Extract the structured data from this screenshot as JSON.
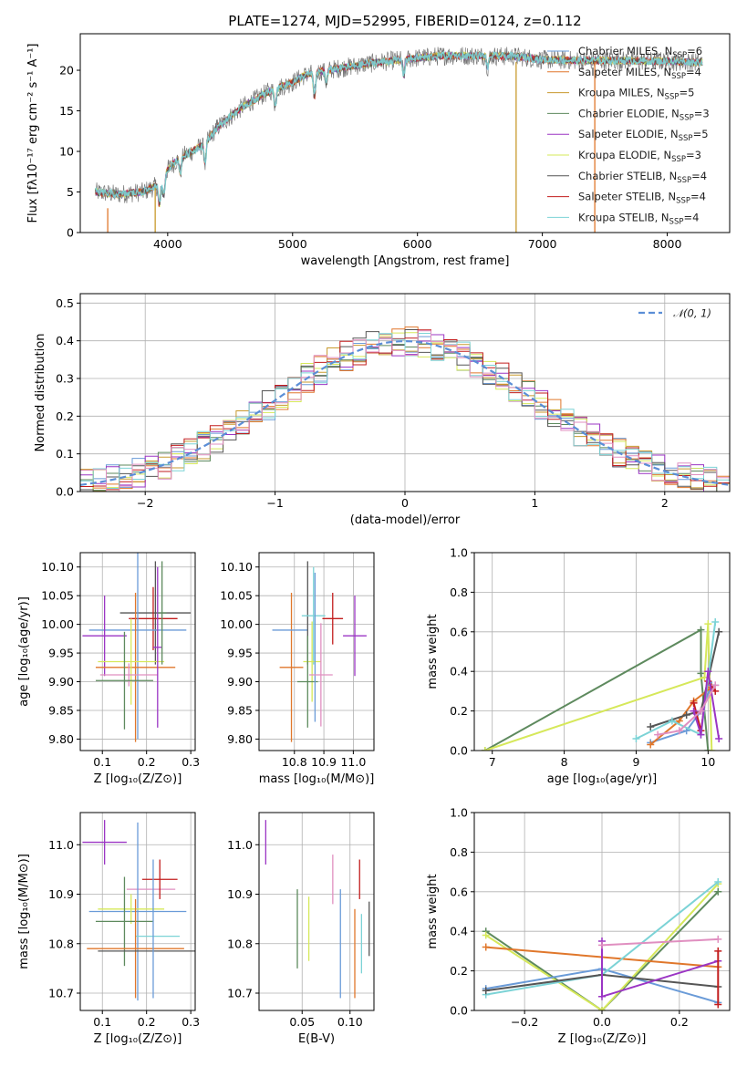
{
  "colors": {
    "chabrier_miles": "#6a9bd8",
    "salpeter_miles": "#e0772b",
    "kroupa_miles": "#c89a2e",
    "chabrier_elodie": "#5e8a5e",
    "salpeter_elodie": "#9b35c4",
    "kroupa_elodie": "#d6e85a",
    "chabrier_stelib": "#555555",
    "salpeter_stelib": "#c21d1d",
    "kroupa_stelib": "#7cd3d6",
    "pink": "#e08fc0",
    "gaussian": "#5b8ed6",
    "grid": "#b0b0b0"
  },
  "chart_data": [
    {
      "id": "spectrum",
      "type": "line",
      "title": "PLATE=1274, MJD=52995, FIBERID=0124, z=0.112",
      "xlabel": "wavelength [Angstrom, rest frame]",
      "ylabel": "Flux [fλ10⁻¹⁷ erg cm⁻² s⁻¹ A⁻¹]",
      "xlim": [
        3300,
        8500
      ],
      "ylim": [
        0,
        24.5
      ],
      "xticks": [
        4000,
        5000,
        6000,
        7000,
        8000
      ],
      "yticks": [
        0,
        5,
        10,
        15,
        20
      ],
      "grid": false,
      "legend_position": "top-right",
      "continuum": [
        [
          3420,
          5.0
        ],
        [
          3600,
          4.7
        ],
        [
          3800,
          5.0
        ],
        [
          3950,
          6.0
        ],
        [
          4000,
          7.8
        ],
        [
          4100,
          9.3
        ],
        [
          4200,
          10.0
        ],
        [
          4300,
          11.0
        ],
        [
          4400,
          13.0
        ],
        [
          4600,
          15.5
        ],
        [
          4800,
          17.3
        ],
        [
          5000,
          18.5
        ],
        [
          5100,
          19.4
        ],
        [
          5200,
          19.8
        ],
        [
          5400,
          20.3
        ],
        [
          5600,
          20.8
        ],
        [
          5800,
          21.2
        ],
        [
          6000,
          21.5
        ],
        [
          6200,
          21.8
        ],
        [
          6500,
          21.8
        ],
        [
          6800,
          21.7
        ],
        [
          7000,
          21.3
        ],
        [
          7300,
          21.2
        ],
        [
          7600,
          21.2
        ],
        [
          8000,
          21.1
        ],
        [
          8280,
          21.0
        ]
      ],
      "series": [
        {
          "name": "Chabrier MILES, N_SSP=6",
          "label": "Chabrier MILES, N",
          "sub": "SSP",
          "suffix": "=6",
          "color_key": "chabrier_miles"
        },
        {
          "name": "Salpeter MILES, N_SSP=4",
          "label": "Salpeter MILES, N",
          "sub": "SSP",
          "suffix": "=4",
          "color_key": "salpeter_miles"
        },
        {
          "name": "Kroupa MILES, N_SSP=5",
          "label": "Kroupa MILES, N",
          "sub": "SSP",
          "suffix": "=5",
          "color_key": "kroupa_miles"
        },
        {
          "name": "Chabrier ELODIE, N_SSP=3",
          "label": "Chabrier ELODIE, N",
          "sub": "SSP",
          "suffix": "=3",
          "color_key": "chabrier_elodie"
        },
        {
          "name": "Salpeter ELODIE, N_SSP=5",
          "label": "Salpeter ELODIE, N",
          "sub": "SSP",
          "suffix": "=5",
          "color_key": "salpeter_elodie"
        },
        {
          "name": "Kroupa ELODIE, N_SSP=3",
          "label": "Kroupa ELODIE, N",
          "sub": "SSP",
          "suffix": "=3",
          "color_key": "kroupa_elodie"
        },
        {
          "name": "Chabrier STELIB, N_SSP=4",
          "label": "Chabrier STELIB, N",
          "sub": "SSP",
          "suffix": "=4",
          "color_key": "chabrier_stelib"
        },
        {
          "name": "Salpeter STELIB, N_SSP=4",
          "label": "Salpeter STELIB, N",
          "sub": "SSP",
          "suffix": "=4",
          "color_key": "salpeter_stelib"
        },
        {
          "name": "Kroupa STELIB, N_SSP=4",
          "label": "Kroupa STELIB, N",
          "sub": "SSP",
          "suffix": "=4",
          "color_key": "kroupa_stelib"
        }
      ],
      "drops": [
        {
          "x": 3520,
          "color_key": "salpeter_miles",
          "from": 3.0
        },
        {
          "x": 3900,
          "color_key": "kroupa_miles",
          "from": 5.5
        },
        {
          "x": 6790,
          "color_key": "kroupa_miles",
          "from": 21.0
        },
        {
          "x": 7420,
          "color_key": "salpeter_miles",
          "from": 21.0
        }
      ]
    },
    {
      "id": "residuals",
      "type": "bar",
      "xlabel": "(data-model)/error",
      "ylabel": "Normed distribution",
      "xlim": [
        -2.5,
        2.5
      ],
      "ylim": [
        0,
        0.525
      ],
      "xticks": [
        -2,
        -1,
        0,
        1,
        2
      ],
      "xtick_labels": [
        "−2",
        "−1",
        "0",
        "1",
        "2"
      ],
      "yticks": [
        0,
        0.1,
        0.2,
        0.3,
        0.4,
        0.5
      ],
      "ytick_labels": [
        "0.0",
        "0.1",
        "0.2",
        "0.3",
        "0.4",
        "0.5"
      ],
      "grid": true,
      "bin_width": 0.1,
      "legend": "𝒩(0, 1)",
      "legend_position": "top-right",
      "histogram_color_keys": [
        "chabrier_miles",
        "salpeter_miles",
        "kroupa_miles",
        "chabrier_elodie",
        "salpeter_elodie",
        "kroupa_elodie",
        "chabrier_stelib",
        "salpeter_stelib",
        "kroupa_stelib",
        "pink"
      ]
    },
    {
      "id": "age_vs_Z",
      "type": "scatter",
      "xlabel": "Z [log₁₀(Z/Z⊙)]",
      "ylabel": "age  [log₁₀(age/yr)]",
      "xlim": [
        0.05,
        0.31
      ],
      "ylim": [
        9.78,
        10.125
      ],
      "xticks": [
        0.1,
        0.2,
        0.3
      ],
      "yticks": [
        9.8,
        9.85,
        9.9,
        9.95,
        10.0,
        10.05,
        10.1
      ],
      "ytick_labels": [
        "9.80",
        "9.85",
        "9.90",
        "9.95",
        "10.00",
        "10.05",
        "10.10"
      ],
      "grid": true,
      "points": [
        {
          "x": 0.22,
          "y": 10.02,
          "xerr": 0.08,
          "yerr": 0.09,
          "color_key": "chabrier_stelib"
        },
        {
          "x": 0.215,
          "y": 10.01,
          "xerr": 0.055,
          "yerr": 0.055,
          "color_key": "salpeter_stelib"
        },
        {
          "x": 0.18,
          "y": 9.99,
          "xerr": 0.11,
          "yerr": 0.19,
          "color_key": "chabrier_miles"
        },
        {
          "x": 0.105,
          "y": 9.98,
          "xerr": 0.05,
          "yerr": 0.07,
          "color_key": "salpeter_elodie"
        },
        {
          "x": 0.175,
          "y": 9.925,
          "xerr": 0.09,
          "yerr": 0.13,
          "color_key": "salpeter_miles"
        },
        {
          "x": 0.165,
          "y": 9.935,
          "xerr": 0.075,
          "yerr": 0.075,
          "color_key": "kroupa_elodie"
        },
        {
          "x": 0.16,
          "y": 9.912,
          "xerr": 0.065,
          "yerr": 0.02,
          "color_key": "pink"
        },
        {
          "x": 0.15,
          "y": 9.902,
          "xerr": 0.065,
          "yerr": 0.085,
          "color_key": "chabrier_elodie"
        },
        {
          "x": 0.225,
          "y": 9.96,
          "xerr": 0.01,
          "yerr": 0.14,
          "color_key": "salpeter_elodie"
        },
        {
          "x": 0.235,
          "y": 10.02,
          "xerr": 0.01,
          "yerr": 0.09,
          "color_key": "chabrier_elodie"
        }
      ]
    },
    {
      "id": "age_vs_mass",
      "type": "scatter",
      "xlabel": "mass [log₁₀(M/M⊙)]",
      "xlim": [
        10.68,
        11.07
      ],
      "ylim": [
        9.78,
        10.125
      ],
      "xticks": [
        10.8,
        10.9,
        11.0
      ],
      "xtick_labels": [
        "10.8",
        "10.9",
        "11.0"
      ],
      "yticks": [
        9.8,
        9.85,
        9.9,
        9.95,
        10.0,
        10.05,
        10.1
      ],
      "ytick_labels": [
        "9.80",
        "9.85",
        "9.90",
        "9.95",
        "10.00",
        "10.05",
        "10.10"
      ],
      "grid": true,
      "points": [
        {
          "x": 10.79,
          "y": 9.925,
          "xerr": 0.04,
          "yerr": 0.13,
          "color_key": "salpeter_miles"
        },
        {
          "x": 10.785,
          "y": 9.99,
          "xerr": 0.06,
          "yerr": 0.0,
          "color_key": "chabrier_miles"
        },
        {
          "x": 10.845,
          "y": 10.02,
          "xerr": 0.0,
          "yerr": 0.09,
          "color_key": "chabrier_stelib"
        },
        {
          "x": 10.865,
          "y": 10.015,
          "xerr": 0.04,
          "yerr": 0.085,
          "color_key": "kroupa_stelib"
        },
        {
          "x": 10.86,
          "y": 9.935,
          "xerr": 0.03,
          "yerr": 0.07,
          "color_key": "kroupa_elodie"
        },
        {
          "x": 10.845,
          "y": 9.9,
          "xerr": 0.035,
          "yerr": 0.08,
          "color_key": "chabrier_elodie"
        },
        {
          "x": 10.87,
          "y": 9.96,
          "xerr": 0.0,
          "yerr": 0.13,
          "color_key": "chabrier_miles"
        },
        {
          "x": 10.89,
          "y": 9.912,
          "xerr": 0.04,
          "yerr": 0.09,
          "color_key": "pink"
        },
        {
          "x": 10.93,
          "y": 10.01,
          "xerr": 0.035,
          "yerr": 0.045,
          "color_key": "salpeter_stelib"
        },
        {
          "x": 11.005,
          "y": 9.98,
          "xerr": 0.04,
          "yerr": 0.07,
          "color_key": "salpeter_elodie"
        }
      ]
    },
    {
      "id": "mass_weight_vs_age",
      "type": "line",
      "xlabel": "age  [log₁₀(age/yr)]",
      "ylabel": "mass weight",
      "xlim": [
        6.75,
        10.3
      ],
      "ylim": [
        0,
        1.0
      ],
      "xticks": [
        7,
        8,
        9,
        10
      ],
      "yticks": [
        0,
        0.2,
        0.4,
        0.6,
        0.8,
        1.0
      ],
      "ytick_labels": [
        "0.0",
        "0.2",
        "0.4",
        "0.6",
        "0.8",
        "1.0"
      ],
      "grid": true,
      "series": [
        {
          "color_key": "chabrier_elodie",
          "x": [
            6.9,
            9.9,
            9.9,
            10.0
          ],
          "y": [
            0.0,
            0.61,
            0.39,
            0.0
          ]
        },
        {
          "color_key": "kroupa_elodie",
          "x": [
            6.9,
            9.95,
            10.0,
            10.05
          ],
          "y": [
            0.0,
            0.37,
            0.64,
            0.0
          ]
        },
        {
          "color_key": "chabrier_miles",
          "x": [
            9.2,
            9.7,
            9.9,
            10.05,
            10.1
          ],
          "y": [
            0.04,
            0.1,
            0.2,
            0.33,
            0.33
          ]
        },
        {
          "color_key": "salpeter_miles",
          "x": [
            9.2,
            9.6,
            9.8,
            10.05
          ],
          "y": [
            0.03,
            0.15,
            0.25,
            0.32
          ]
        },
        {
          "color_key": "chabrier_stelib",
          "x": [
            9.2,
            9.7,
            9.9,
            10.15
          ],
          "y": [
            0.12,
            0.18,
            0.2,
            0.6
          ]
        },
        {
          "color_key": "salpeter_stelib",
          "x": [
            9.8,
            9.9,
            10.0,
            10.1
          ],
          "y": [
            0.24,
            0.1,
            0.35,
            0.3
          ]
        },
        {
          "color_key": "kroupa_stelib",
          "x": [
            9.0,
            9.5,
            9.9,
            10.1
          ],
          "y": [
            0.06,
            0.15,
            0.08,
            0.65
          ]
        },
        {
          "color_key": "salpeter_elodie",
          "x": [
            9.8,
            9.9,
            10.0,
            10.15
          ],
          "y": [
            0.2,
            0.08,
            0.4,
            0.06
          ]
        },
        {
          "color_key": "pink",
          "x": [
            9.3,
            9.6,
            9.9,
            10.1
          ],
          "y": [
            0.08,
            0.1,
            0.2,
            0.33
          ]
        }
      ]
    },
    {
      "id": "mass_vs_Z",
      "type": "scatter",
      "xlabel": "Z [log₁₀(Z/Z⊙)]",
      "ylabel": "mass [log₁₀(M/M⊙)]",
      "xlim": [
        0.05,
        0.31
      ],
      "ylim": [
        10.665,
        11.065
      ],
      "xticks": [
        0.1,
        0.2,
        0.3
      ],
      "yticks": [
        10.7,
        10.8,
        10.9,
        11.0
      ],
      "ytick_labels": [
        "10.7",
        "10.8",
        "10.9",
        "11.0"
      ],
      "grid": true,
      "points": [
        {
          "x": 0.105,
          "y": 11.005,
          "xerr": 0.05,
          "yerr": 0.045,
          "color_key": "salpeter_elodie"
        },
        {
          "x": 0.21,
          "y": 10.91,
          "xerr": 0.055,
          "yerr": 0.0,
          "color_key": "pink"
        },
        {
          "x": 0.23,
          "y": 10.93,
          "xerr": 0.04,
          "yerr": 0.04,
          "color_key": "salpeter_stelib"
        },
        {
          "x": 0.18,
          "y": 10.865,
          "xerr": 0.11,
          "yerr": 0.18,
          "color_key": "chabrier_miles"
        },
        {
          "x": 0.165,
          "y": 10.87,
          "xerr": 0.075,
          "yerr": 0.03,
          "color_key": "kroupa_elodie"
        },
        {
          "x": 0.15,
          "y": 10.845,
          "xerr": 0.065,
          "yerr": 0.09,
          "color_key": "chabrier_elodie"
        },
        {
          "x": 0.225,
          "y": 10.815,
          "xerr": 0.05,
          "yerr": 0.0,
          "color_key": "kroupa_stelib"
        },
        {
          "x": 0.175,
          "y": 10.79,
          "xerr": 0.11,
          "yerr": 0.1,
          "color_key": "salpeter_miles"
        },
        {
          "x": 0.2,
          "y": 10.785,
          "xerr": 0.11,
          "yerr": 0.0,
          "color_key": "chabrier_stelib"
        },
        {
          "x": 0.215,
          "y": 10.83,
          "xerr": 0.0,
          "yerr": 0.14,
          "color_key": "chabrier_miles"
        }
      ]
    },
    {
      "id": "mass_vs_ebv",
      "type": "scatter",
      "xlabel": "E(B-V)",
      "xlim": [
        0.005,
        0.125
      ],
      "ylim": [
        10.665,
        11.065
      ],
      "xticks": [
        0.05,
        0.1
      ],
      "xtick_labels": [
        "0.05",
        "0.10"
      ],
      "yticks": [
        10.7,
        10.8,
        10.9,
        11.0
      ],
      "ytick_labels": [
        "10.7",
        "10.8",
        "10.9",
        "11.0"
      ],
      "grid": true,
      "points": [
        {
          "x": 0.012,
          "y": 11.005,
          "xerr": 0.0,
          "yerr": 0.045,
          "color_key": "salpeter_elodie"
        },
        {
          "x": 0.045,
          "y": 10.83,
          "xerr": 0.0,
          "yerr": 0.08,
          "color_key": "chabrier_elodie"
        },
        {
          "x": 0.057,
          "y": 10.83,
          "xerr": 0.0,
          "yerr": 0.065,
          "color_key": "kroupa_elodie"
        },
        {
          "x": 0.082,
          "y": 10.93,
          "xerr": 0.0,
          "yerr": 0.05,
          "color_key": "pink"
        },
        {
          "x": 0.09,
          "y": 10.8,
          "xerr": 0.0,
          "yerr": 0.11,
          "color_key": "chabrier_miles"
        },
        {
          "x": 0.105,
          "y": 10.78,
          "xerr": 0.0,
          "yerr": 0.09,
          "color_key": "salpeter_miles"
        },
        {
          "x": 0.11,
          "y": 10.93,
          "xerr": 0.0,
          "yerr": 0.04,
          "color_key": "salpeter_stelib"
        },
        {
          "x": 0.112,
          "y": 10.8,
          "xerr": 0.0,
          "yerr": 0.06,
          "color_key": "kroupa_stelib"
        },
        {
          "x": 0.12,
          "y": 10.83,
          "xerr": 0.0,
          "yerr": 0.055,
          "color_key": "chabrier_stelib"
        }
      ]
    },
    {
      "id": "mass_weight_vs_Z",
      "type": "line",
      "xlabel": "Z [log₁₀(Z/Z⊙)]",
      "ylabel": "mass weight",
      "xlim": [
        -0.33,
        0.33
      ],
      "ylim": [
        0,
        1.0
      ],
      "xticks": [
        -0.2,
        0.0,
        0.2
      ],
      "xtick_labels": [
        "−0.2",
        "0.0",
        "0.2"
      ],
      "yticks": [
        0,
        0.2,
        0.4,
        0.6,
        0.8,
        1.0
      ],
      "ytick_labels": [
        "0.0",
        "0.2",
        "0.4",
        "0.6",
        "0.8",
        "1.0"
      ],
      "grid": true,
      "series": [
        {
          "color_key": "chabrier_elodie",
          "x": [
            -0.3,
            0.0,
            0.3
          ],
          "y": [
            0.4,
            0.0,
            0.6
          ]
        },
        {
          "color_key": "kroupa_elodie",
          "x": [
            -0.3,
            0.0,
            0.3
          ],
          "y": [
            0.38,
            0.0,
            0.64
          ]
        },
        {
          "color_key": "salpeter_miles",
          "x": [
            -0.3,
            0.3
          ],
          "y": [
            0.32,
            0.22
          ]
        },
        {
          "color_key": "chabrier_miles",
          "x": [
            -0.3,
            0.0,
            0.3
          ],
          "y": [
            0.11,
            0.21,
            0.04
          ]
        },
        {
          "color_key": "kroupa_stelib",
          "x": [
            -0.3,
            0.0,
            0.3
          ],
          "y": [
            0.08,
            0.18,
            0.65
          ]
        },
        {
          "color_key": "chabrier_stelib",
          "x": [
            -0.3,
            0.0,
            0.3
          ],
          "y": [
            0.1,
            0.18,
            0.12
          ]
        },
        {
          "color_key": "salpeter_elodie",
          "x": [
            0.0,
            0.0,
            0.3
          ],
          "y": [
            0.35,
            0.07,
            0.25
          ]
        },
        {
          "color_key": "pink",
          "x": [
            0.0,
            0.3
          ],
          "y": [
            0.33,
            0.36
          ]
        },
        {
          "color_key": "salpeter_stelib",
          "x": [
            0.3,
            0.3
          ],
          "y": [
            0.03,
            0.3
          ]
        }
      ]
    }
  ]
}
